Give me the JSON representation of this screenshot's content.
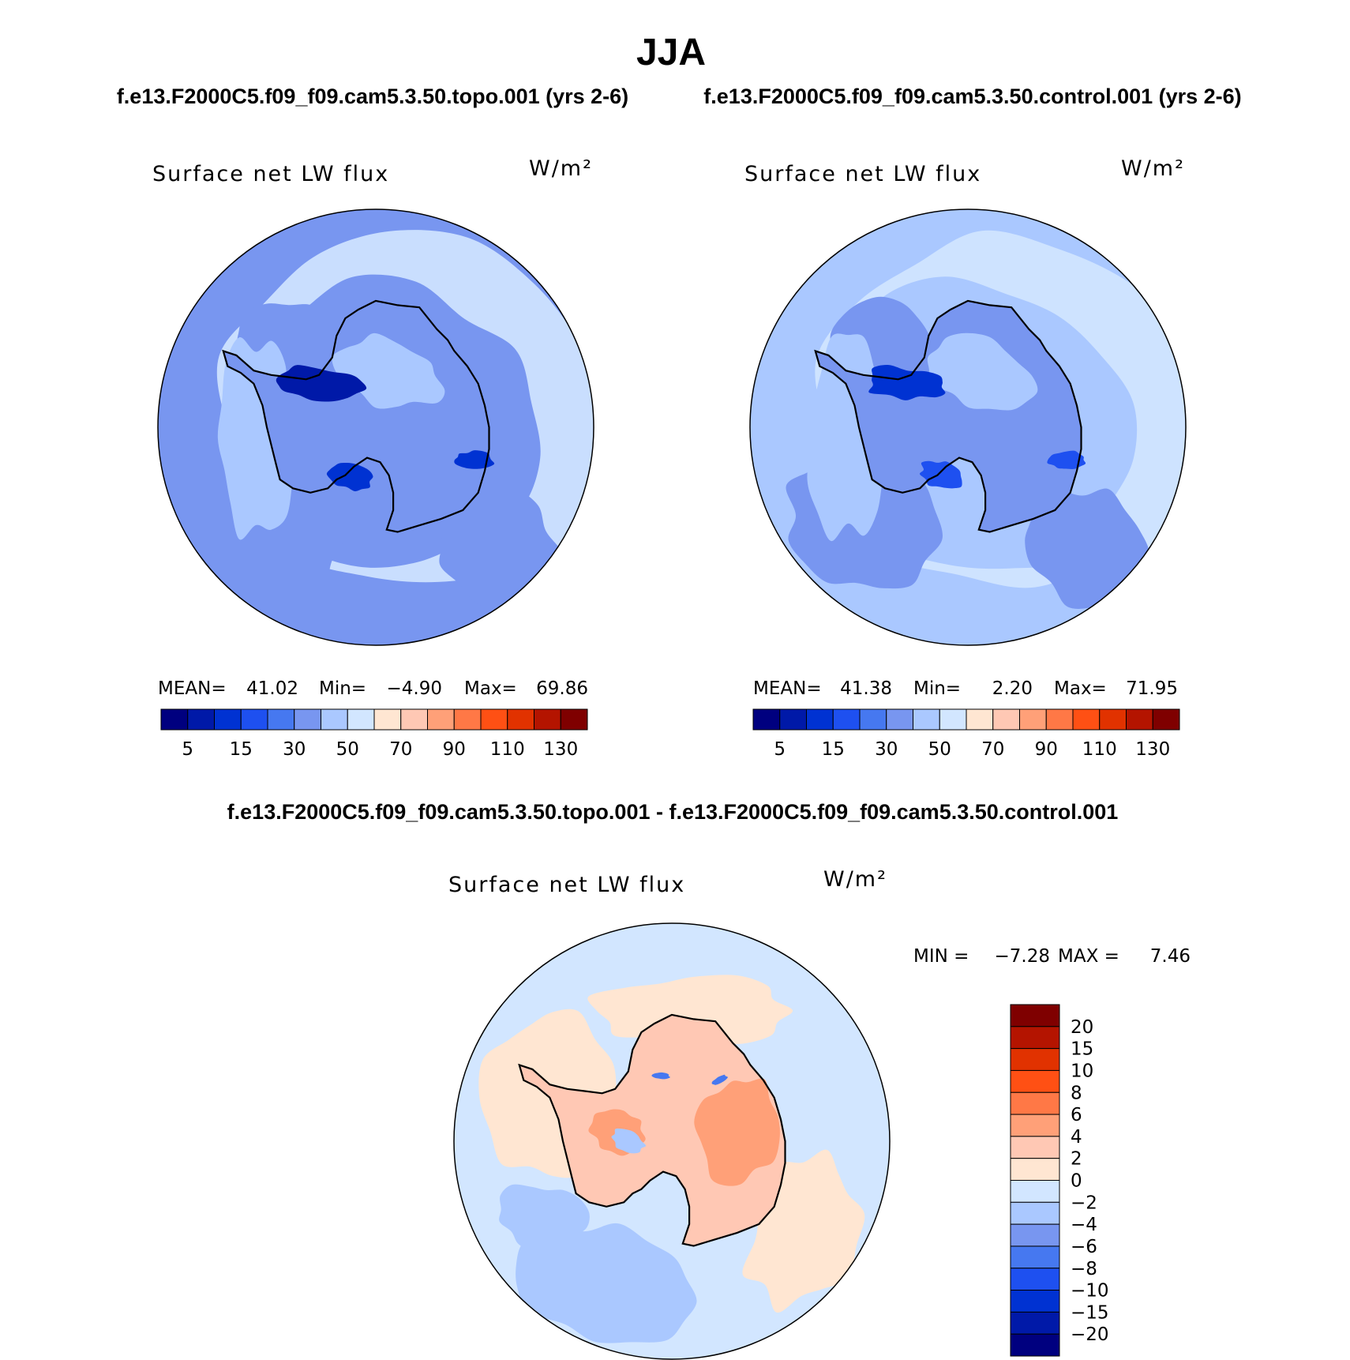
{
  "title": "JJA",
  "case_titles": {
    "topo": "f.e13.F2000C5.f09_f09.cam5.3.50.topo.001 (yrs 2-6)",
    "control": "f.e13.F2000C5.f09_f09.cam5.3.50.control.001 (yrs 2-6)",
    "diff": "f.e13.F2000C5.f09_f09.cam5.3.50.topo.001 - f.e13.F2000C5.f09_f09.cam5.3.50.control.001"
  },
  "colors": {
    "abs_scale": [
      "#00007f",
      "#0019a8",
      "#0032d2",
      "#1e50f0",
      "#4678f0",
      "#7896f0",
      "#aac8ff",
      "#d2e6ff",
      "#ffe6d2",
      "#ffc8b4",
      "#ffa078",
      "#ff7846",
      "#ff5014",
      "#e13200",
      "#b41400",
      "#7f0000"
    ],
    "diff_scale": [
      "#00007f",
      "#0019a8",
      "#0032d2",
      "#1e50f0",
      "#4678f0",
      "#7896f0",
      "#aac8ff",
      "#d2e6ff",
      "#ffe6d2",
      "#ffc8b4",
      "#ffa078",
      "#ff7846",
      "#ff5014",
      "#e13200",
      "#b41400",
      "#7f0000"
    ],
    "coastline": "#000000"
  },
  "chart_data": [
    {
      "type": "heatmap",
      "projection": "south polar stereographic",
      "case": "f.e13.F2000C5.f09_f09.cam5.3.50.topo.001 (yrs 2-6)",
      "variable_label": "Surface net LW flux",
      "units": "W/m²",
      "stats": [
        {
          "label": "MEAN=",
          "value": "41.02"
        },
        {
          "label": "Min=",
          "value": "−4.90"
        },
        {
          "label": "Max=",
          "value": "69.86"
        }
      ],
      "colorbar": {
        "orientation": "horizontal",
        "levels": [
          5,
          10,
          15,
          20,
          30,
          40,
          50,
          60,
          70,
          80,
          90,
          100,
          110,
          120,
          130
        ],
        "tick_labels": [
          "5",
          "15",
          "30",
          "50",
          "70",
          "90",
          "110",
          "130"
        ]
      },
      "field_summary": {
        "ocean_far": 40,
        "ocean_ring_high": 58,
        "ice_sheet": 40,
        "coastal_minimum": 10
      }
    },
    {
      "type": "heatmap",
      "projection": "south polar stereographic",
      "case": "f.e13.F2000C5.f09_f09.cam5.3.50.control.001 (yrs 2-6)",
      "variable_label": "Surface net LW flux",
      "units": "W/m²",
      "stats": [
        {
          "label": "MEAN=",
          "value": "41.38"
        },
        {
          "label": "Min=",
          "value": "2.20"
        },
        {
          "label": "Max=",
          "value": "71.95"
        }
      ],
      "colorbar": {
        "orientation": "horizontal",
        "levels": [
          5,
          10,
          15,
          20,
          30,
          40,
          50,
          60,
          70,
          80,
          90,
          100,
          110,
          120,
          130
        ],
        "tick_labels": [
          "5",
          "15",
          "30",
          "50",
          "70",
          "90",
          "110",
          "130"
        ]
      },
      "field_summary": {
        "ocean_far": 42,
        "ocean_ring_high": 60,
        "ice_sheet": 38,
        "coastal_minimum": 12
      }
    },
    {
      "type": "heatmap",
      "projection": "south polar stereographic",
      "case": "f.e13.F2000C5.f09_f09.cam5.3.50.topo.001 - f.e13.F2000C5.f09_f09.cam5.3.50.control.001",
      "variable_label": "Surface net LW flux",
      "units": "W/m²",
      "stats": [
        {
          "label": "MIN =",
          "value": "−7.28"
        },
        {
          "label": "MAX =",
          "value": "7.46"
        }
      ],
      "colorbar": {
        "orientation": "vertical",
        "levels": [
          -20,
          -15,
          -10,
          -8,
          -6,
          -4,
          -2,
          0,
          2,
          4,
          6,
          8,
          10,
          15,
          20
        ],
        "tick_labels": [
          "20",
          "15",
          "10",
          "8",
          "6",
          "4",
          "2",
          "0",
          "−2",
          "−4",
          "−6",
          "−8",
          "−10",
          "−15",
          "−20"
        ]
      },
      "field_summary": {
        "ice_sheet": 2.5,
        "ocean_pacific": -2,
        "ocean_atlantic": 1.5,
        "coastal_minimum": -6
      }
    }
  ]
}
